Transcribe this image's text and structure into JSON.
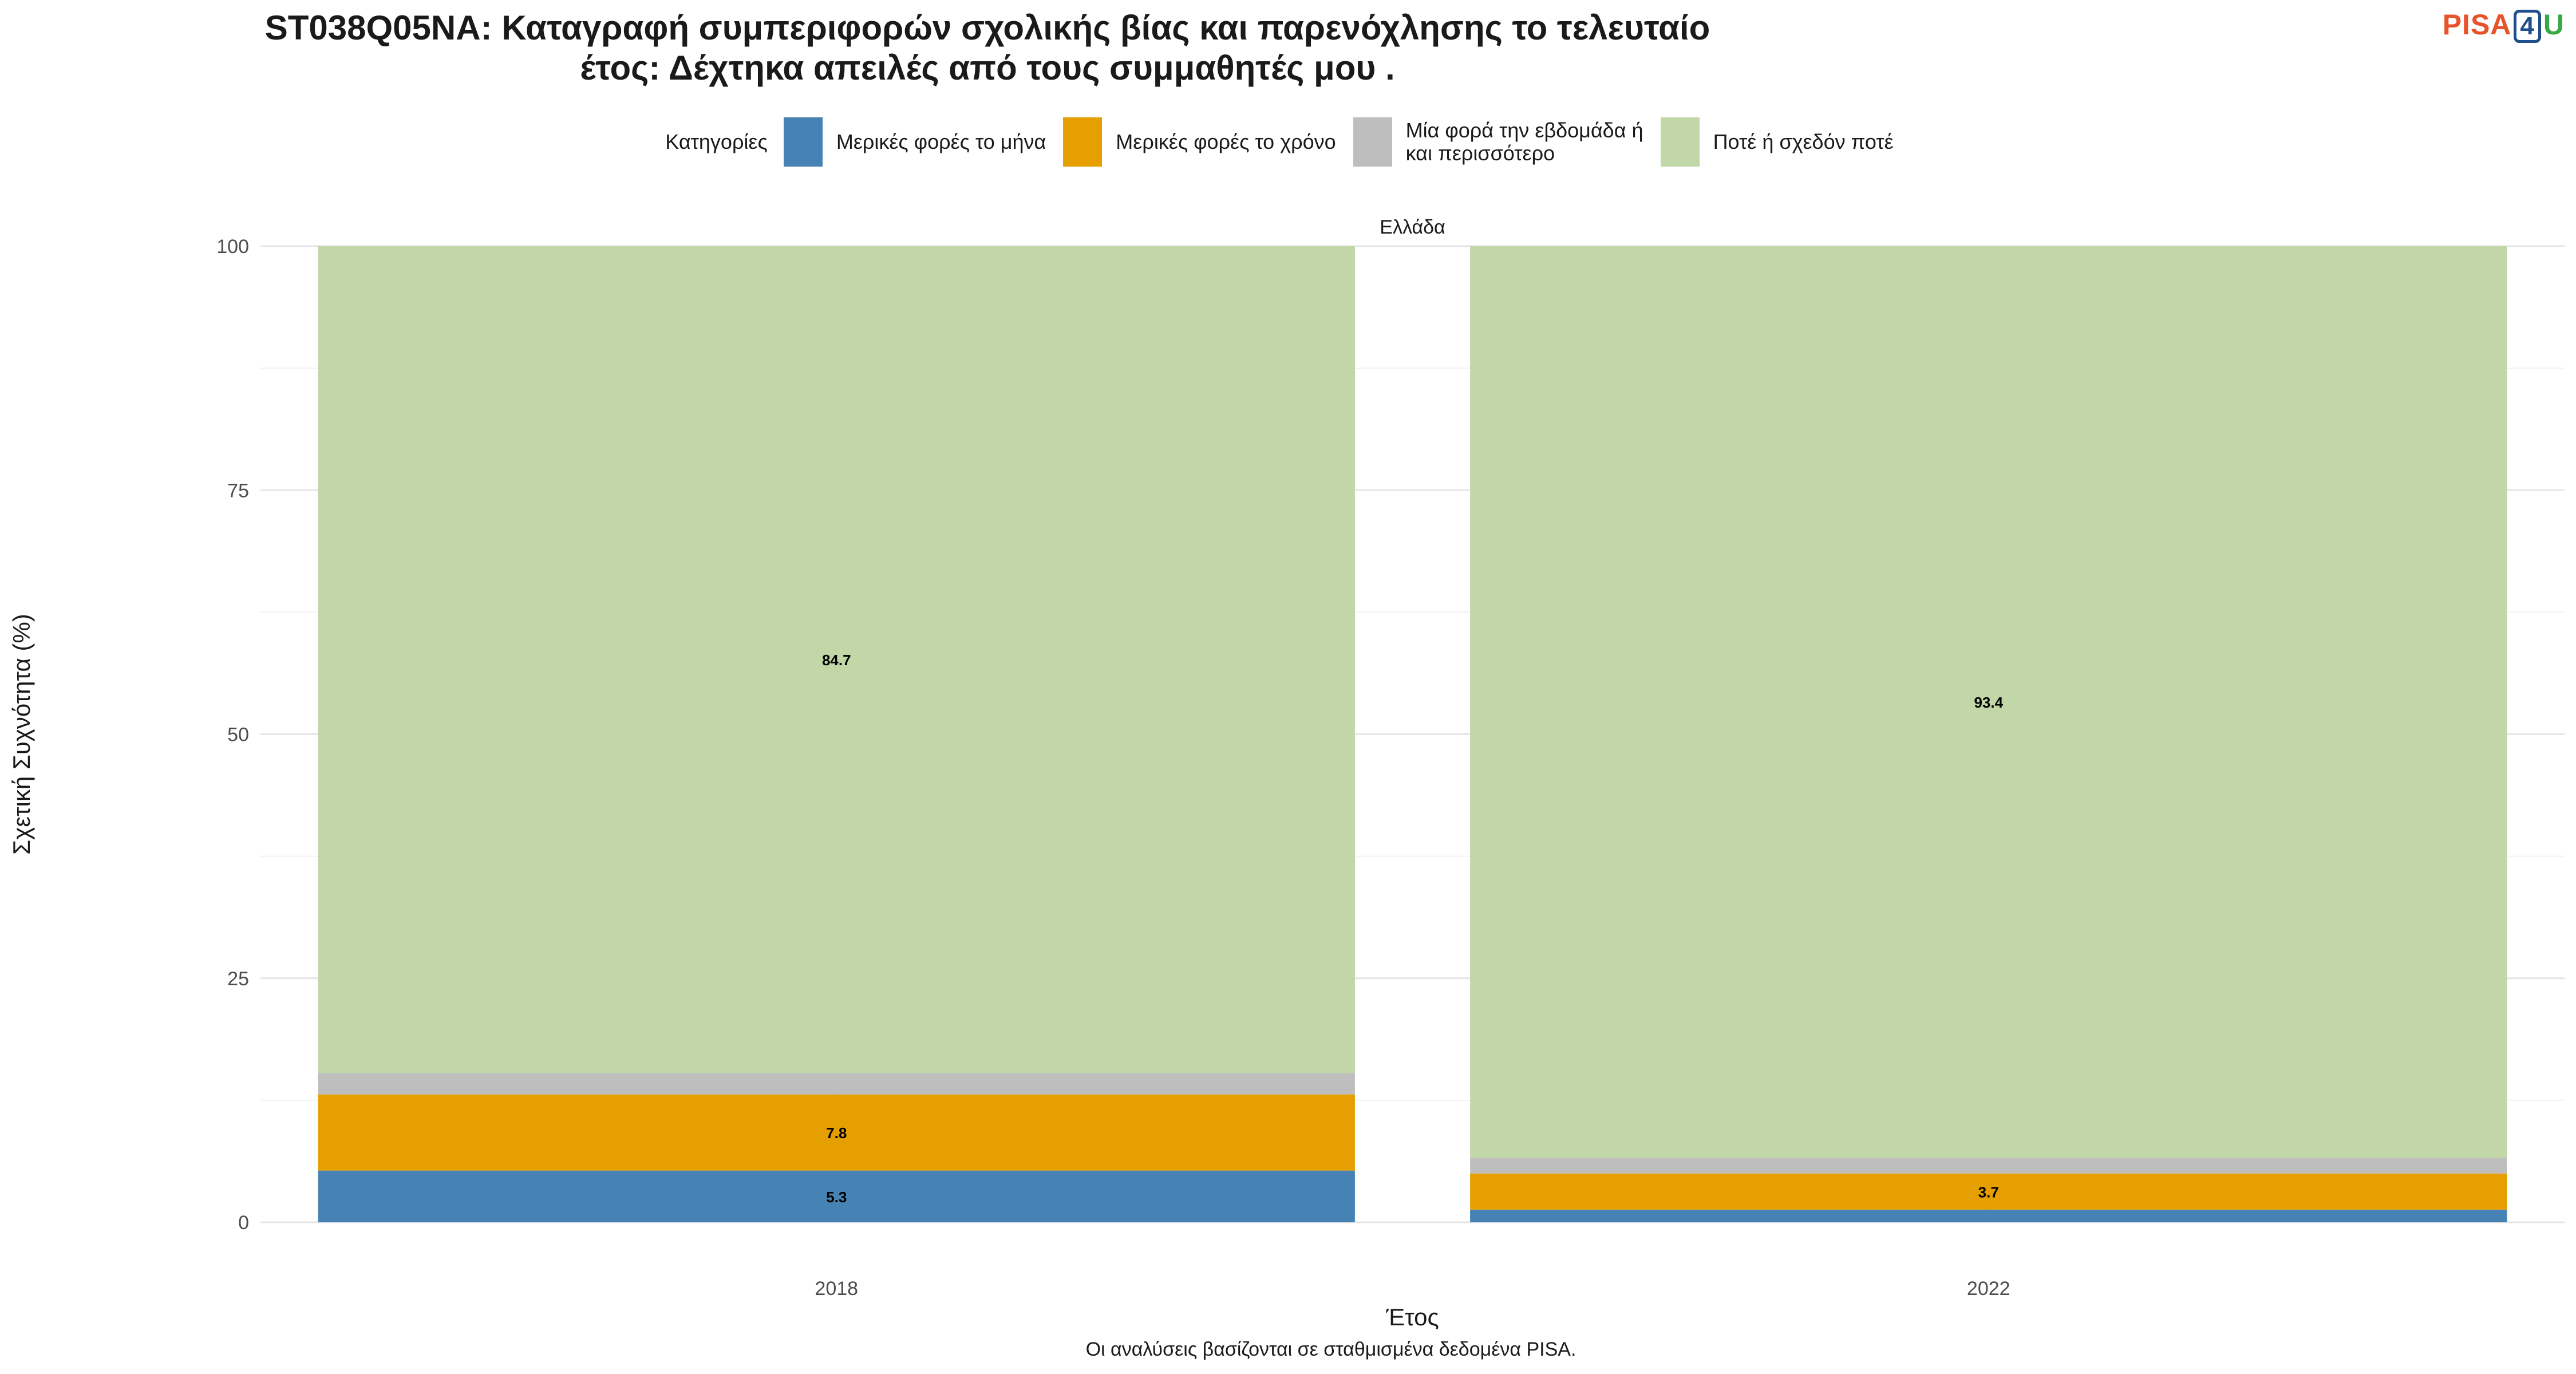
{
  "title_line1": "ST038Q05NA: Καταγραφή συμπεριφορών σχολικής βίας και παρενόχλησης το τελευταίο",
  "title_line2": "έτος: Δέχτηκα απειλές από τους συμμαθητές μου .",
  "logo": {
    "pisa": "PISA",
    "four": "4",
    "u": "U"
  },
  "legend": {
    "title": "Κατηγορίες",
    "items": [
      {
        "label": [
          "Μερικές φορές το μήνα"
        ],
        "color": "#4682b4"
      },
      {
        "label": [
          "Μερικές φορές το χρόνο"
        ],
        "color": "#e69f00"
      },
      {
        "label": [
          "Μία φορά την εβδομάδα ή",
          "και περισσότερο"
        ],
        "color": "#bebebe"
      },
      {
        "label": [
          "Ποτέ ή σχεδόν ποτέ"
        ],
        "color": "#c2d7a7"
      }
    ]
  },
  "caption": "Οι αναλύσεις βασίζονται σε σταθμισμένα δεδομένα PISA.",
  "chart_data": {
    "type": "bar",
    "stacked": true,
    "facet": "Ελλάδα",
    "categories": [
      "2018",
      "2022"
    ],
    "series": [
      {
        "name": "Μερικές φορές το μήνα",
        "values": [
          5.3,
          1.3
        ],
        "labels": [
          "5.3",
          ""
        ]
      },
      {
        "name": "Μερικές φορές το χρόνο",
        "values": [
          7.8,
          3.7
        ],
        "labels": [
          "7.8",
          "3.7"
        ]
      },
      {
        "name": "Μία φορά την εβδομάδα ή και περισσότερο",
        "values": [
          2.2,
          1.6
        ],
        "labels": [
          "",
          ""
        ]
      },
      {
        "name": "Ποτέ ή σχεδόν ποτέ",
        "values": [
          84.7,
          93.4
        ],
        "labels": [
          "84.7",
          "93.4"
        ]
      }
    ],
    "colors": [
      "#4682b4",
      "#e69f00",
      "#bebebe",
      "#c2d7a7"
    ],
    "xlabel": "Έτος",
    "ylabel": "Σχετική Συχνότητα (%)",
    "ylim": [
      0,
      100
    ],
    "yticks": [
      0,
      25,
      50,
      75,
      100
    ],
    "grid": true,
    "legend_position": "top"
  }
}
